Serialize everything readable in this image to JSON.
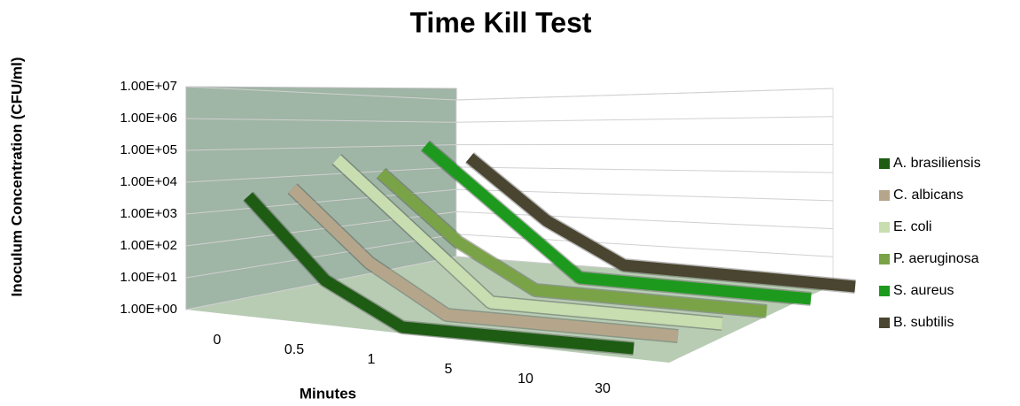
{
  "chart_data": {
    "type": "line3d",
    "title": "Time Kill Test",
    "x_label": "Minutes",
    "y_label": "Inoculum Concentration (CFU/ml)",
    "categories": [
      "0",
      "0.5",
      "1",
      "5",
      "10",
      "30"
    ],
    "log_y": true,
    "ylim": [
      1,
      10000000
    ],
    "yticks": [
      {
        "value": 1,
        "label": "1.00E+00"
      },
      {
        "value": 10,
        "label": "1.00E+01"
      },
      {
        "value": 100,
        "label": "1.00E+02"
      },
      {
        "value": 1000,
        "label": "1.00E+03"
      },
      {
        "value": 10000,
        "label": "1.00E+04"
      },
      {
        "value": 100000,
        "label": "1.00E+05"
      },
      {
        "value": 1000000,
        "label": "1.00E+06"
      },
      {
        "value": 10000000,
        "label": "1.00E+07"
      }
    ],
    "grid": true,
    "legend": "right",
    "series": [
      {
        "name": "A. brasiliensis",
        "color": "#1e5c14",
        "values": [
          100000,
          50,
          1,
          1,
          1,
          1
        ]
      },
      {
        "name": "C. albicans",
        "color": "#b5a68b",
        "values": [
          100000,
          100,
          1,
          1,
          1,
          1
        ]
      },
      {
        "name": "E. coli",
        "color": "#c8ddb0",
        "values": [
          1000000,
          1000,
          1,
          1,
          1,
          1
        ]
      },
      {
        "name": "P. aeruginosa",
        "color": "#7aa347",
        "values": [
          100000,
          100,
          1,
          1,
          1,
          1
        ]
      },
      {
        "name": "S. aureus",
        "color": "#1d9a1d",
        "values": [
          1000000,
          1000,
          1,
          1,
          1,
          1
        ]
      },
      {
        "name": "B. subtilis",
        "color": "#4a4530",
        "values": [
          100000,
          100,
          1,
          1,
          1,
          1
        ]
      }
    ]
  }
}
